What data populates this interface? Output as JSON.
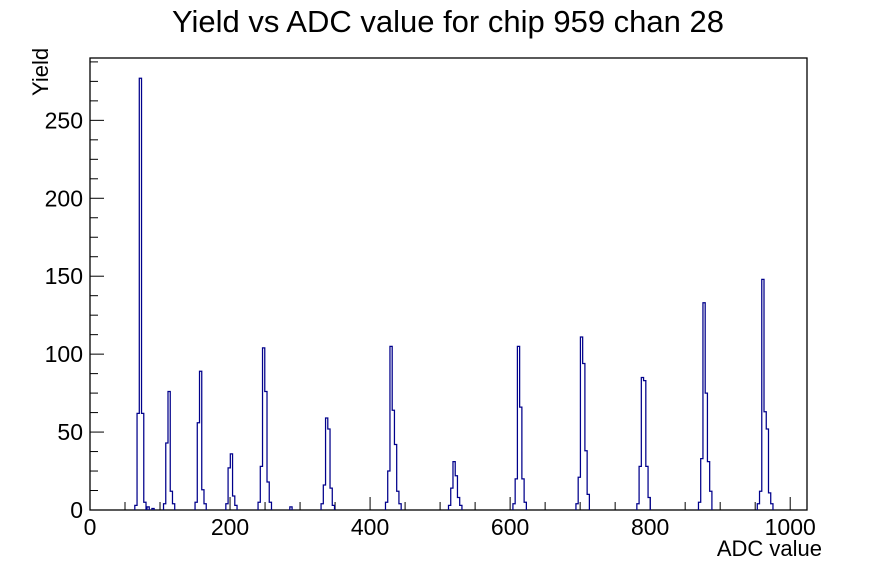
{
  "chart_data": {
    "type": "bar",
    "subtype": "root-histogram-outline",
    "title": "Yield vs ADC value for chip 959 chan 28",
    "xlabel": "ADC value",
    "ylabel": "Yield",
    "xlim": [
      0,
      1024
    ],
    "ylim": [
      0,
      290
    ],
    "grid": "off",
    "legend": "none",
    "x_major_ticks": [
      0,
      200,
      400,
      600,
      800,
      1000
    ],
    "x_tick_labels": [
      "0",
      "200",
      "400",
      "600",
      "800",
      "1000"
    ],
    "x_minor_step": 50,
    "y_major_ticks": [
      0,
      50,
      100,
      150,
      200,
      250
    ],
    "y_tick_labels": [
      "0",
      "50",
      "100",
      "150",
      "200",
      "250"
    ],
    "y_minor_step": 12.5,
    "line_color": "#00008b",
    "axis_color": "#000000",
    "background_color": "#ffffff",
    "bin_width_adc": 3.2,
    "peaks": [
      {
        "adc": 72,
        "bins": [
          3,
          62,
          277,
          62,
          5
        ]
      },
      {
        "adc": 83,
        "bins": [
          2
        ]
      },
      {
        "adc": 90,
        "bins": [
          1
        ]
      },
      {
        "adc": 113,
        "bins": [
          4,
          43,
          76,
          12,
          4
        ]
      },
      {
        "adc": 158,
        "bins": [
          5,
          56,
          89,
          13,
          4
        ]
      },
      {
        "adc": 202,
        "bins": [
          4,
          27,
          36,
          9,
          3
        ]
      },
      {
        "adc": 248,
        "bins": [
          5,
          28,
          104,
          76,
          18,
          5
        ]
      },
      {
        "adc": 287,
        "bins": [
          2
        ]
      },
      {
        "adc": 338,
        "bins": [
          4,
          16,
          59,
          52,
          14,
          3
        ]
      },
      {
        "adc": 430,
        "bins": [
          5,
          25,
          105,
          64,
          42,
          12,
          4
        ]
      },
      {
        "adc": 520,
        "bins": [
          3,
          14,
          31,
          22,
          8,
          3
        ]
      },
      {
        "adc": 612,
        "bins": [
          4,
          20,
          105,
          66,
          20,
          5
        ]
      },
      {
        "adc": 702,
        "bins": [
          4,
          21,
          111,
          94,
          38,
          10
        ]
      },
      {
        "adc": 789,
        "bins": [
          4,
          28,
          85,
          83,
          28,
          8
        ]
      },
      {
        "adc": 877,
        "bins": [
          5,
          33,
          133,
          75,
          31,
          12
        ]
      },
      {
        "adc": 961,
        "bins": [
          4,
          12,
          148,
          63,
          52,
          11,
          4
        ]
      }
    ]
  }
}
